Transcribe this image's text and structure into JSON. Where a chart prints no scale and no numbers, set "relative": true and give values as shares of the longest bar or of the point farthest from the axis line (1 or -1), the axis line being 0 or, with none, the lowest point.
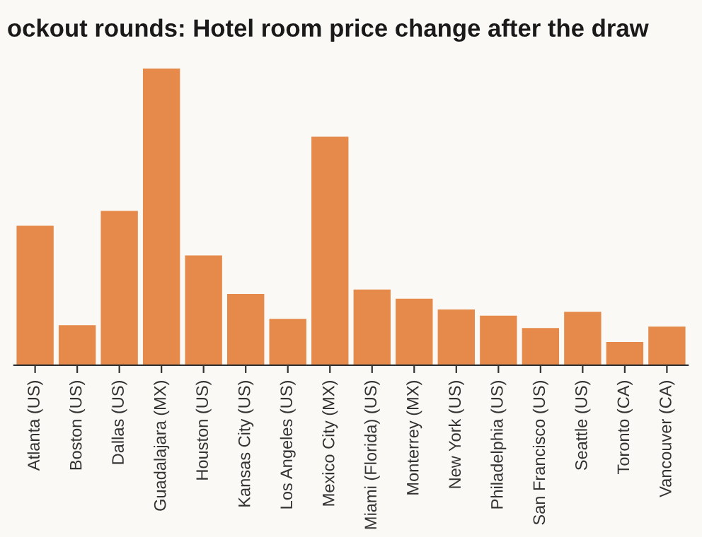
{
  "chart_data": {
    "type": "bar",
    "title": "ockout rounds: Hotel room price change after the draw",
    "categories": [
      "Atlanta (US)",
      "Boston (US)",
      "Dallas (US)",
      "Guadalajara (MX)",
      "Houston (US)",
      "Kansas City (US)",
      "Los Angeles (US)",
      "Mexico City (MX)",
      "Miami (Florida) (US)",
      "Monterrey (MX)",
      "New York (US)",
      "Philadelphia (US)",
      "San Francisco (US)",
      "Seattle (US)",
      "Toronto (CA)",
      "Vancouver (CA)"
    ],
    "values": [
      0.47,
      0.135,
      0.52,
      1,
      0.37,
      0.24,
      0.156,
      0.77,
      0.255,
      0.224,
      0.188,
      0.167,
      0.125,
      0.18,
      0.078,
      0.13
    ],
    "color": "#e68a4b",
    "relative": true
  }
}
